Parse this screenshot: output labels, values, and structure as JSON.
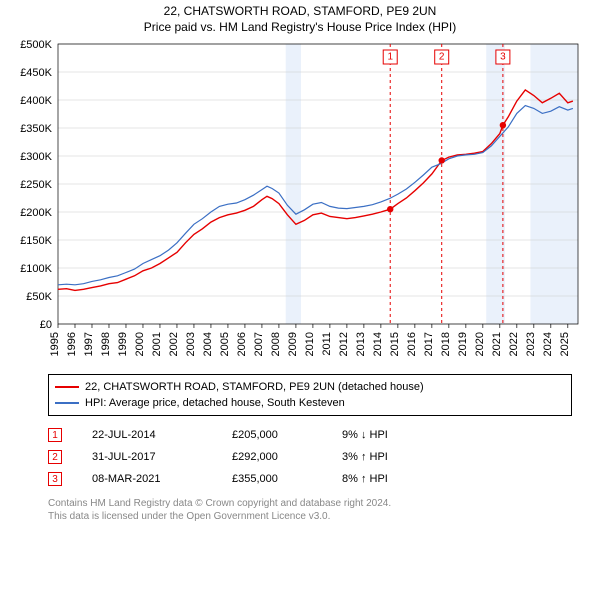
{
  "title_line1": "22, CHATSWORTH ROAD, STAMFORD, PE9 2UN",
  "title_line2": "Price paid vs. HM Land Registry's House Price Index (HPI)",
  "chart": {
    "type": "line",
    "background_color": "#ffffff",
    "grid_color": "#cccccc",
    "x_years": [
      1995,
      1996,
      1997,
      1998,
      1999,
      2000,
      2001,
      2002,
      2003,
      2004,
      2005,
      2006,
      2007,
      2008,
      2009,
      2010,
      2011,
      2012,
      2013,
      2014,
      2015,
      2016,
      2017,
      2018,
      2019,
      2020,
      2021,
      2022,
      2023,
      2024,
      2025
    ],
    "xlim": [
      1995,
      2025.6
    ],
    "ylim": [
      0,
      500000
    ],
    "ytick_step": 50000,
    "ytick_labels": [
      "£0",
      "£50K",
      "£100K",
      "£150K",
      "£200K",
      "£250K",
      "£300K",
      "£350K",
      "£400K",
      "£450K",
      "£500K"
    ],
    "series": [
      {
        "name": "property",
        "color": "#e60000",
        "width": 1.4,
        "points": [
          [
            1995,
            62000
          ],
          [
            1995.5,
            63000
          ],
          [
            1996,
            60000
          ],
          [
            1996.5,
            62000
          ],
          [
            1997,
            65000
          ],
          [
            1997.5,
            68000
          ],
          [
            1998,
            72000
          ],
          [
            1998.5,
            74000
          ],
          [
            1999,
            80000
          ],
          [
            1999.5,
            86000
          ],
          [
            2000,
            95000
          ],
          [
            2000.5,
            100000
          ],
          [
            2001,
            108000
          ],
          [
            2001.5,
            118000
          ],
          [
            2002,
            128000
          ],
          [
            2002.5,
            145000
          ],
          [
            2003,
            160000
          ],
          [
            2003.5,
            170000
          ],
          [
            2004,
            182000
          ],
          [
            2004.5,
            190000
          ],
          [
            2005,
            195000
          ],
          [
            2005.5,
            198000
          ],
          [
            2006,
            203000
          ],
          [
            2006.5,
            210000
          ],
          [
            2007,
            222000
          ],
          [
            2007.3,
            228000
          ],
          [
            2007.6,
            224000
          ],
          [
            2008,
            215000
          ],
          [
            2008.5,
            195000
          ],
          [
            2009,
            178000
          ],
          [
            2009.5,
            185000
          ],
          [
            2010,
            195000
          ],
          [
            2010.5,
            198000
          ],
          [
            2011,
            192000
          ],
          [
            2011.5,
            190000
          ],
          [
            2012,
            188000
          ],
          [
            2012.5,
            190000
          ],
          [
            2013,
            193000
          ],
          [
            2013.5,
            196000
          ],
          [
            2014,
            200000
          ],
          [
            2014.55,
            205000
          ],
          [
            2015,
            215000
          ],
          [
            2015.5,
            225000
          ],
          [
            2016,
            238000
          ],
          [
            2016.5,
            252000
          ],
          [
            2017,
            268000
          ],
          [
            2017.58,
            292000
          ],
          [
            2018,
            298000
          ],
          [
            2018.5,
            302000
          ],
          [
            2019,
            303000
          ],
          [
            2019.5,
            305000
          ],
          [
            2020,
            308000
          ],
          [
            2020.5,
            322000
          ],
          [
            2021,
            340000
          ],
          [
            2021.18,
            355000
          ],
          [
            2021.5,
            370000
          ],
          [
            2022,
            398000
          ],
          [
            2022.5,
            418000
          ],
          [
            2023,
            408000
          ],
          [
            2023.5,
            395000
          ],
          [
            2024,
            403000
          ],
          [
            2024.5,
            412000
          ],
          [
            2025,
            395000
          ],
          [
            2025.3,
            398000
          ]
        ]
      },
      {
        "name": "hpi",
        "color": "#3b6fc4",
        "width": 1.2,
        "points": [
          [
            1995,
            70000
          ],
          [
            1995.5,
            71000
          ],
          [
            1996,
            70000
          ],
          [
            1996.5,
            72000
          ],
          [
            1997,
            76000
          ],
          [
            1997.5,
            79000
          ],
          [
            1998,
            83000
          ],
          [
            1998.5,
            86000
          ],
          [
            1999,
            92000
          ],
          [
            1999.5,
            98000
          ],
          [
            2000,
            108000
          ],
          [
            2000.5,
            115000
          ],
          [
            2001,
            122000
          ],
          [
            2001.5,
            132000
          ],
          [
            2002,
            145000
          ],
          [
            2002.5,
            162000
          ],
          [
            2003,
            178000
          ],
          [
            2003.5,
            188000
          ],
          [
            2004,
            200000
          ],
          [
            2004.5,
            210000
          ],
          [
            2005,
            214000
          ],
          [
            2005.5,
            216000
          ],
          [
            2006,
            222000
          ],
          [
            2006.5,
            230000
          ],
          [
            2007,
            240000
          ],
          [
            2007.3,
            246000
          ],
          [
            2007.6,
            242000
          ],
          [
            2008,
            234000
          ],
          [
            2008.5,
            212000
          ],
          [
            2009,
            196000
          ],
          [
            2009.5,
            204000
          ],
          [
            2010,
            214000
          ],
          [
            2010.5,
            217000
          ],
          [
            2011,
            210000
          ],
          [
            2011.5,
            207000
          ],
          [
            2012,
            206000
          ],
          [
            2012.5,
            208000
          ],
          [
            2013,
            210000
          ],
          [
            2013.5,
            213000
          ],
          [
            2014,
            218000
          ],
          [
            2014.5,
            224000
          ],
          [
            2015,
            232000
          ],
          [
            2015.5,
            241000
          ],
          [
            2016,
            253000
          ],
          [
            2016.5,
            266000
          ],
          [
            2017,
            280000
          ],
          [
            2017.5,
            286000
          ],
          [
            2018,
            295000
          ],
          [
            2018.5,
            300000
          ],
          [
            2019,
            302000
          ],
          [
            2019.5,
            303000
          ],
          [
            2020,
            306000
          ],
          [
            2020.5,
            318000
          ],
          [
            2021,
            335000
          ],
          [
            2021.5,
            352000
          ],
          [
            2022,
            376000
          ],
          [
            2022.5,
            390000
          ],
          [
            2023,
            385000
          ],
          [
            2023.5,
            376000
          ],
          [
            2024,
            380000
          ],
          [
            2024.5,
            388000
          ],
          [
            2025,
            382000
          ],
          [
            2025.3,
            385000
          ]
        ]
      }
    ],
    "bands": [
      {
        "from": 2008.4,
        "to": 2009.3,
        "color": "#eaf1fb"
      },
      {
        "from": 2020.2,
        "to": 2021.3,
        "color": "#eaf1fb"
      },
      {
        "from": 2022.8,
        "to": 2025.6,
        "color": "#eaf1fb"
      }
    ],
    "markers": [
      {
        "num": "1",
        "x": 2014.55,
        "y": 205000,
        "color": "#e60000"
      },
      {
        "num": "2",
        "x": 2017.58,
        "y": 292000,
        "color": "#e60000"
      },
      {
        "num": "3",
        "x": 2021.18,
        "y": 355000,
        "color": "#e60000"
      }
    ]
  },
  "legend": {
    "items": [
      {
        "color": "#e60000",
        "label": "22, CHATSWORTH ROAD, STAMFORD, PE9 2UN (detached house)"
      },
      {
        "color": "#3b6fc4",
        "label": "HPI: Average price, detached house, South Kesteven"
      }
    ]
  },
  "events": [
    {
      "num": "1",
      "color": "#e60000",
      "date": "22-JUL-2014",
      "price": "£205,000",
      "diff": "9% ↓ HPI"
    },
    {
      "num": "2",
      "color": "#e60000",
      "date": "31-JUL-2017",
      "price": "£292,000",
      "diff": "3% ↑ HPI"
    },
    {
      "num": "3",
      "color": "#e60000",
      "date": "08-MAR-2021",
      "price": "£355,000",
      "diff": "8% ↑ HPI"
    }
  ],
  "footer": {
    "line1": "Contains HM Land Registry data © Crown copyright and database right 2024.",
    "line2": "This data is licensed under the Open Government Licence v3.0."
  }
}
